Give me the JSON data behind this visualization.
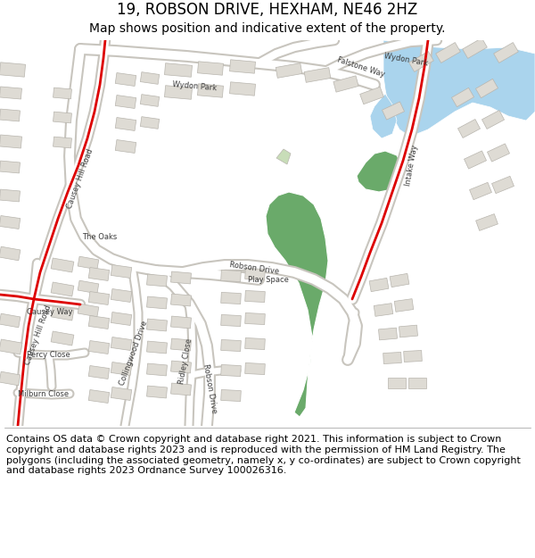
{
  "title": "19, ROBSON DRIVE, HEXHAM, NE46 2HZ",
  "subtitle": "Map shows position and indicative extent of the property.",
  "copyright": "Contains OS data © Crown copyright and database right 2021. This information is subject to Crown copyright and database rights 2023 and is reproduced with the permission of HM Land Registry. The polygons (including the associated geometry, namely x, y co-ordinates) are subject to Crown copyright and database rights 2023 Ordnance Survey 100026316.",
  "bg_color": "#f2f0ec",
  "road_fill": "#ffffff",
  "road_edge": "#c8c5be",
  "water_fill": "#aad4ed",
  "green_fill": "#6aaa6a",
  "green_fill2": "#c8ddb8",
  "red_color": "#dd0000",
  "bld_fill": "#dedbd4",
  "bld_edge": "#b8b5ae",
  "title_fs": 12,
  "sub_fs": 10,
  "copy_fs": 8.0,
  "label_fs": 6.0
}
